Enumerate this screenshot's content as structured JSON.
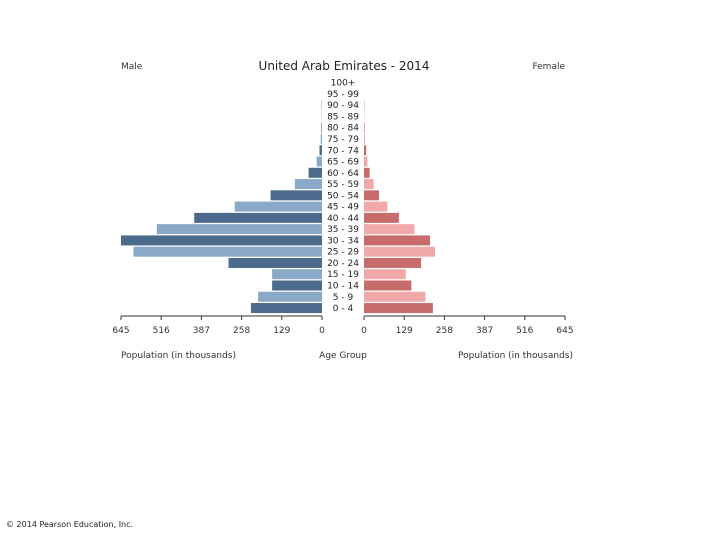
{
  "chart_data": {
    "type": "bar",
    "title": "United Arab Emirates - 2014",
    "left_label": "Male",
    "right_label": "Female",
    "center_label": "Age Group",
    "xlabel_left": "Population (in thousands)",
    "xlabel_right": "Population (in thousands)",
    "ticks_left": [
      "645",
      "516",
      "387",
      "258",
      "129",
      "0"
    ],
    "ticks_right": [
      "0",
      "129",
      "258",
      "387",
      "516",
      "645"
    ],
    "xlim": [
      0,
      645
    ],
    "categories": [
      "100+",
      "95 - 99",
      "90 - 94",
      "85 - 89",
      "80 - 84",
      "75 - 79",
      "70 - 74",
      "65 - 69",
      "60 - 64",
      "55 - 59",
      "50 - 54",
      "45 - 49",
      "40 - 44",
      "35 - 39",
      "30 - 34",
      "25 - 29",
      "20 - 24",
      "15 - 19",
      "10 - 14",
      "5 - 9",
      "0 - 4"
    ],
    "series": [
      {
        "name": "Male",
        "values": [
          0,
          0,
          1,
          1,
          2,
          4,
          8,
          17,
          43,
          87,
          165,
          280,
          410,
          530,
          645,
          605,
          300,
          160,
          160,
          205,
          228
        ]
      },
      {
        "name": "Female",
        "values": [
          0,
          0,
          1,
          1,
          2,
          3,
          7,
          11,
          18,
          31,
          48,
          75,
          112,
          162,
          212,
          228,
          183,
          134,
          152,
          197,
          221
        ]
      }
    ],
    "colors": {
      "male_dark": "#4b6a8c",
      "male_light": "#8aa8c8",
      "female_dark": "#c86b6b",
      "female_light": "#f0a8a8"
    }
  },
  "footer": {
    "copyright": "© 2014 Pearson Education, Inc."
  }
}
